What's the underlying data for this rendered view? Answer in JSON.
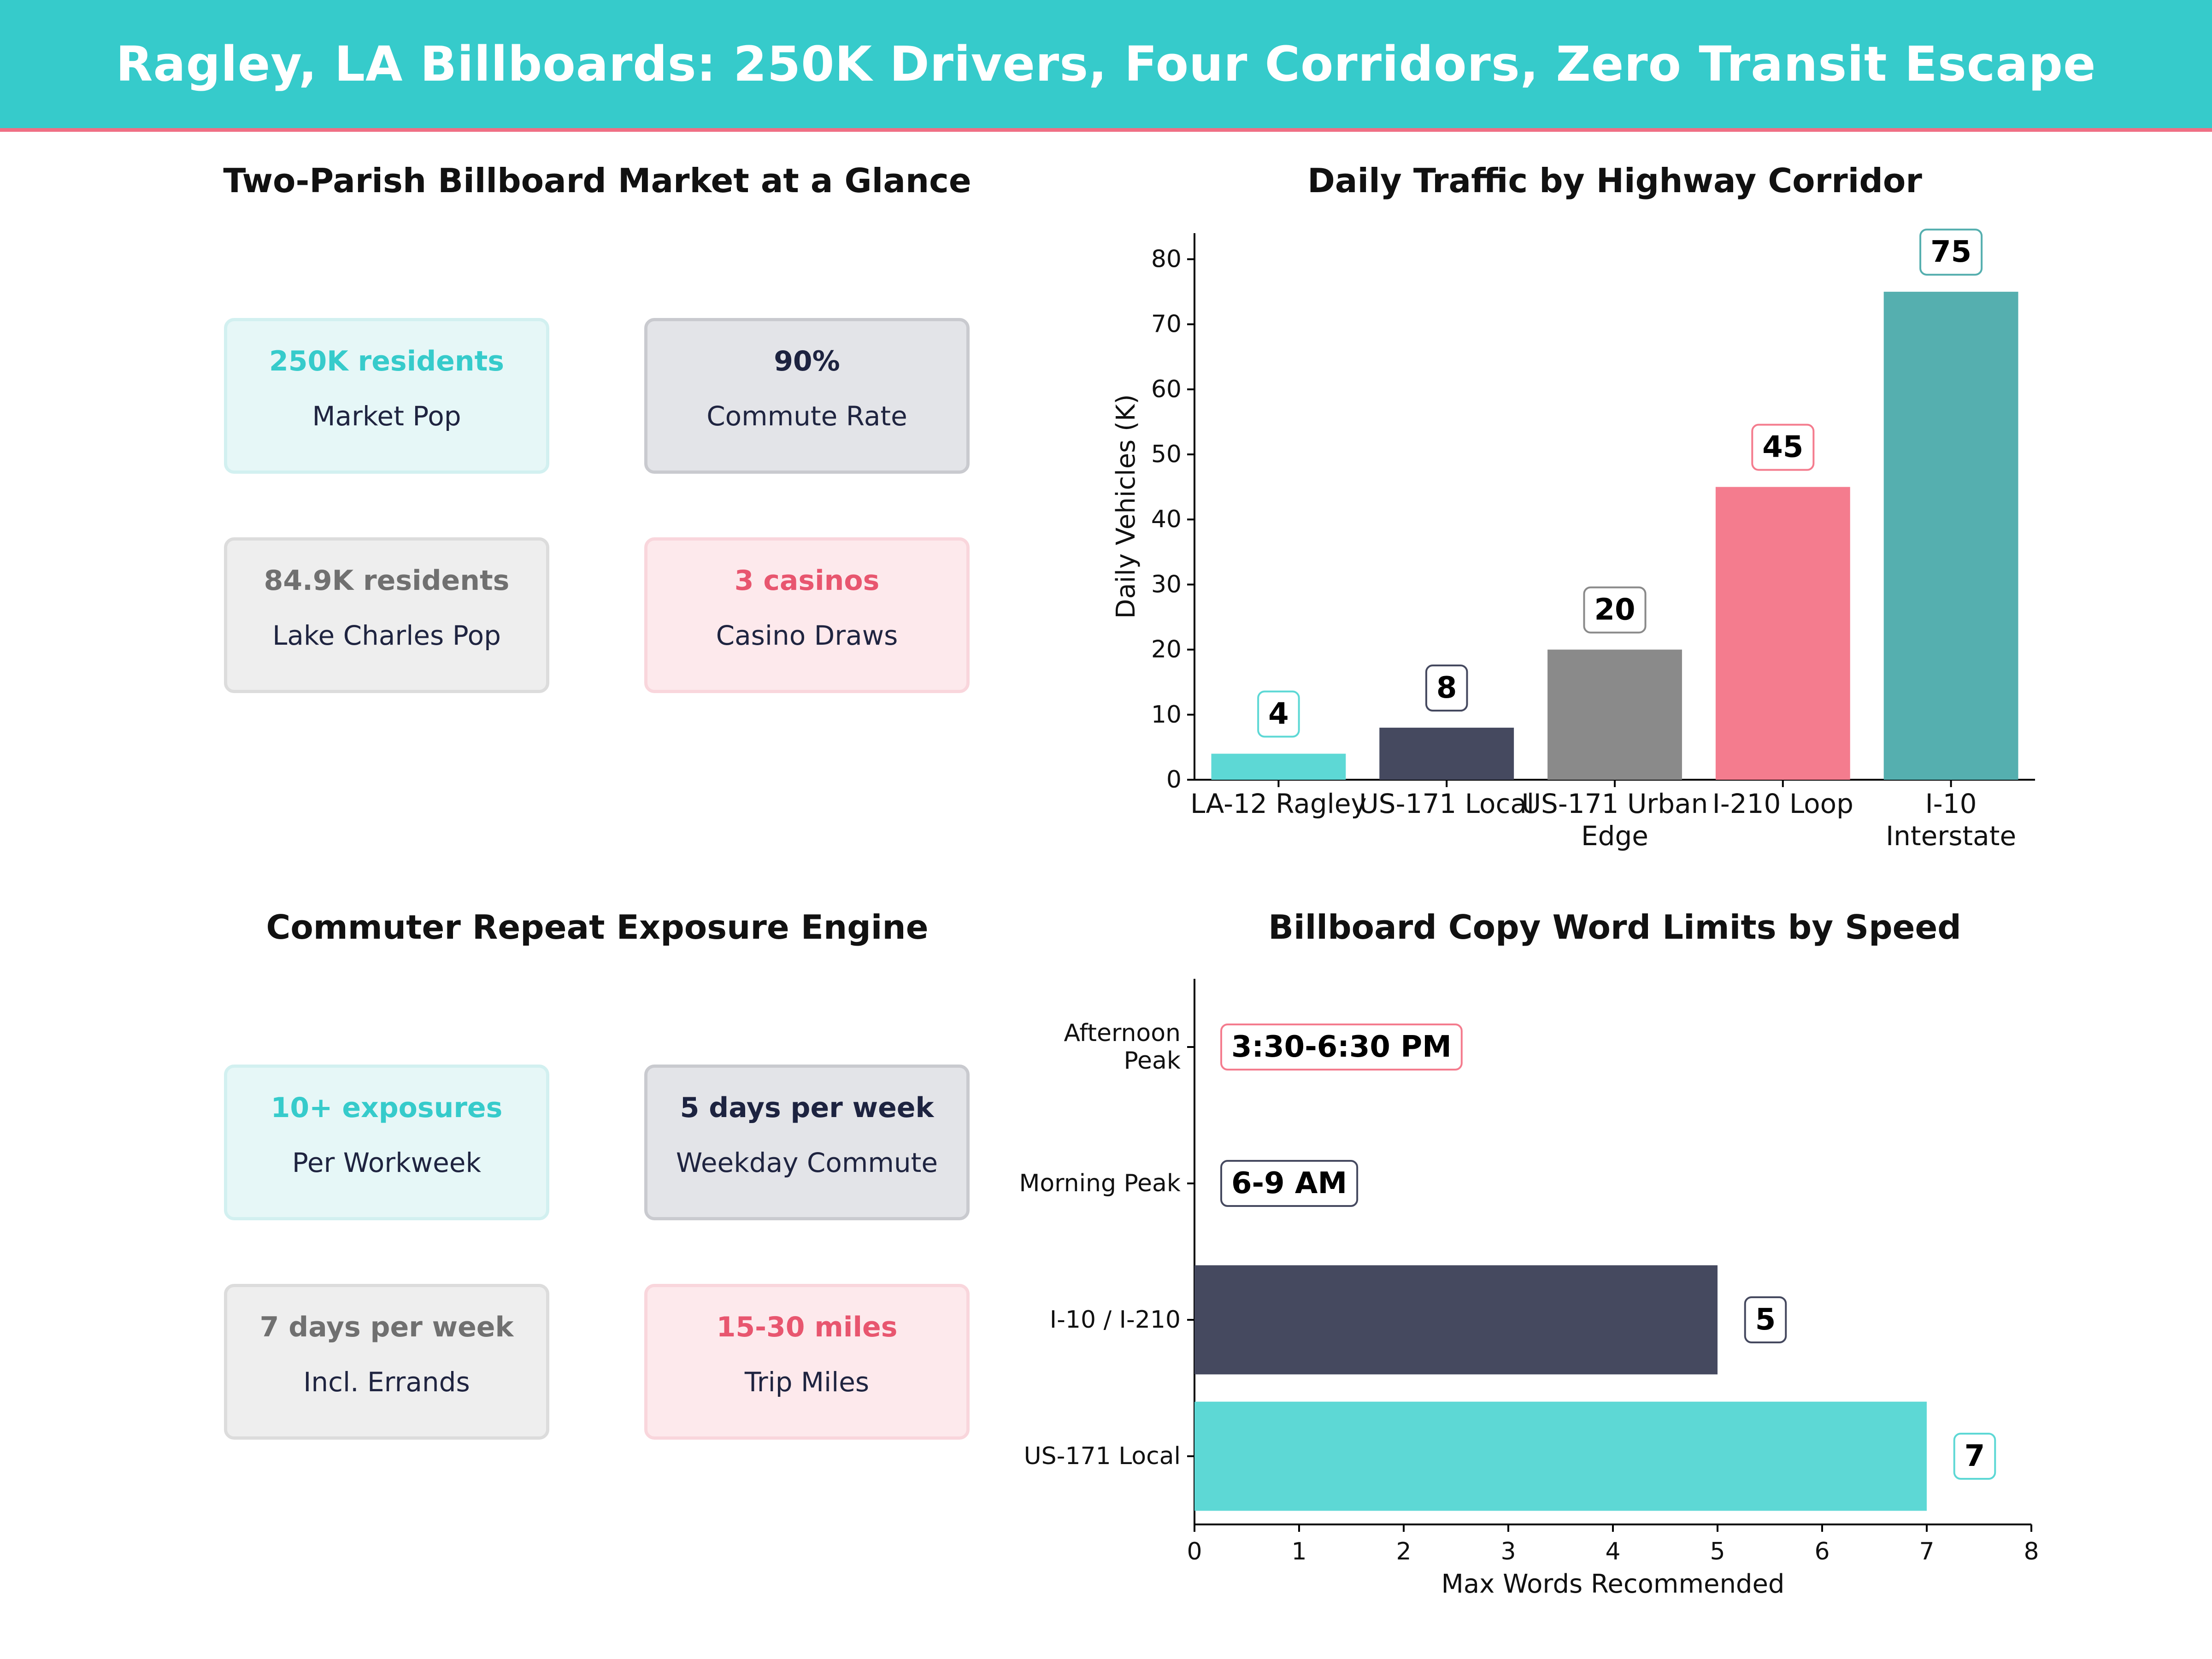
{
  "header": {
    "title": "Ragley, LA Billboards: 250K Drivers, Four Corridors, Zero Transit Escape"
  },
  "panels": {
    "market": {
      "title": "Two-Parish Billboard Market at a Glance",
      "cards": [
        {
          "value": "250K residents",
          "label": "Market Pop",
          "style": "teal"
        },
        {
          "value": "90%",
          "label": "Commute Rate",
          "style": "navy"
        },
        {
          "value": "84.9K residents",
          "label": "Lake Charles Pop",
          "style": "gray"
        },
        {
          "value": "3 casinos",
          "label": "Casino Draws",
          "style": "pink"
        }
      ]
    },
    "exposure": {
      "title": "Commuter Repeat Exposure Engine",
      "cards": [
        {
          "value": "10+ exposures",
          "label": "Per Workweek",
          "style": "teal"
        },
        {
          "value": "5 days per week",
          "label": "Weekday Commute",
          "style": "navy"
        },
        {
          "value": "7 days per week",
          "label": "Incl. Errands",
          "style": "gray"
        },
        {
          "value": "15-30 miles",
          "label": "Trip Miles",
          "style": "pink"
        }
      ]
    }
  },
  "colors": {
    "teal": "#5DD8D5",
    "navy": "#45495F",
    "gray": "#8A8A8A",
    "pink": "#F47C8E",
    "dark_teal": "#55AFAF",
    "banner": "#36CBCB",
    "banner_rule": "#EF6F84"
  },
  "chart_data": [
    {
      "type": "bar",
      "title": "Daily Traffic by Highway Corridor",
      "ylabel": "Daily Vehicles (K)",
      "xlabel": "",
      "categories": [
        "LA-12 Ragley",
        "US-171 Local",
        "US-171 Urban Edge",
        "I-210 Loop",
        "I-10 Interstate"
      ],
      "category_lines": [
        [
          "LA-12 Ragley"
        ],
        [
          "US-171 Local"
        ],
        [
          "US-171 Urban",
          "Edge"
        ],
        [
          "I-210 Loop"
        ],
        [
          "I-10",
          "Interstate"
        ]
      ],
      "values": [
        4,
        8,
        20,
        45,
        75
      ],
      "value_labels": [
        "4",
        "8",
        "20",
        "45",
        "75"
      ],
      "bar_colors": [
        "teal",
        "navy",
        "gray",
        "pink",
        "dark_teal"
      ],
      "ylim": [
        0,
        84
      ],
      "yticks": [
        0,
        10,
        20,
        30,
        40,
        50,
        60,
        70,
        80
      ],
      "grid": false,
      "legend": "none"
    },
    {
      "type": "bar",
      "orientation": "horizontal",
      "title": "Billboard Copy Word Limits by Speed",
      "xlabel": "Max Words Recommended",
      "ylabel": "",
      "categories": [
        "US-171 Local",
        "I-10 / I-210",
        "Morning Peak",
        "Afternoon Peak"
      ],
      "category_lines": [
        [
          "US-171 Local"
        ],
        [
          "I-10 / I-210"
        ],
        [
          "Morning Peak"
        ],
        [
          "Afternoon",
          "Peak"
        ]
      ],
      "values": [
        7,
        5,
        0,
        0
      ],
      "value_labels": [
        "7",
        "5",
        "6-9 AM",
        "3:30-6:30 PM"
      ],
      "bar_colors": [
        "teal",
        "navy",
        "none",
        "none"
      ],
      "label_borders": [
        "teal",
        "navy",
        "navy",
        "pink"
      ],
      "xlim": [
        0,
        8
      ],
      "xticks": [
        0,
        1,
        2,
        3,
        4,
        5,
        6,
        7,
        8
      ],
      "grid": false,
      "legend": "none"
    }
  ]
}
